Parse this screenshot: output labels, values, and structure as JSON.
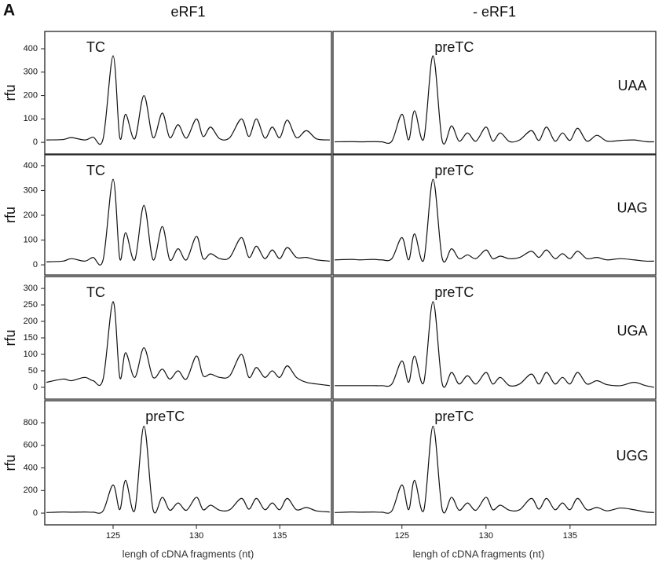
{
  "panel_label": "A",
  "chart_data": [
    {
      "type": "line",
      "title": "eRF1",
      "ylabel": "rfu",
      "annotation": "TC",
      "x": [
        121,
        122,
        122.5,
        123.3,
        123.8,
        124.4,
        125,
        125.4,
        125.75,
        126.3,
        126.85,
        127.4,
        127.95,
        128.4,
        128.9,
        129.4,
        130,
        130.4,
        130.85,
        131.4,
        132,
        132.7,
        133.15,
        133.6,
        134.1,
        134.55,
        135,
        135.45,
        136,
        136.6,
        137.2,
        138
      ],
      "values": [
        10,
        12,
        20,
        10,
        22,
        15,
        370,
        20,
        120,
        15,
        200,
        20,
        125,
        20,
        75,
        18,
        100,
        25,
        65,
        15,
        20,
        100,
        25,
        100,
        18,
        65,
        20,
        95,
        20,
        50,
        15,
        10
      ],
      "xlim": [
        120.9,
        138.1
      ],
      "ylim": [
        -50,
        474
      ],
      "yticks": [
        0,
        100,
        200,
        300,
        400
      ],
      "color": "#111111"
    },
    {
      "type": "line",
      "title": "- eRF1",
      "row_label": "UAA",
      "annotation": "preTC",
      "x": [
        121,
        122,
        122.5,
        123.3,
        123.8,
        124.4,
        125,
        125.4,
        125.75,
        126.3,
        126.85,
        127.4,
        127.95,
        128.4,
        128.9,
        129.4,
        130,
        130.4,
        130.85,
        131.4,
        132,
        132.7,
        133.15,
        133.6,
        134.1,
        134.55,
        135,
        135.45,
        136,
        136.6,
        137.2,
        138,
        138.8,
        139.5,
        140
      ],
      "values": [
        2,
        3,
        2,
        3,
        2,
        5,
        120,
        10,
        135,
        15,
        370,
        5,
        70,
        5,
        40,
        5,
        65,
        5,
        40,
        3,
        10,
        50,
        8,
        65,
        5,
        40,
        8,
        60,
        5,
        30,
        5,
        8,
        10,
        3,
        2
      ],
      "xlim": [
        120.9,
        140.1
      ],
      "ylim": [
        -50,
        474
      ],
      "color": "#111111"
    },
    {
      "type": "line",
      "ylabel": "rfu",
      "annotation": "TC",
      "x": [
        121,
        122,
        122.5,
        123.3,
        123.8,
        124.4,
        125,
        125.4,
        125.75,
        126.3,
        126.85,
        127.4,
        127.95,
        128.4,
        128.9,
        129.4,
        130,
        130.4,
        130.85,
        131.4,
        132,
        132.7,
        133.15,
        133.6,
        134.1,
        134.55,
        135,
        135.45,
        136,
        136.6,
        137.2,
        138
      ],
      "values": [
        12,
        15,
        25,
        15,
        30,
        20,
        345,
        25,
        130,
        20,
        240,
        20,
        155,
        20,
        65,
        20,
        115,
        25,
        45,
        25,
        30,
        110,
        30,
        75,
        25,
        60,
        25,
        70,
        30,
        30,
        20,
        15
      ],
      "xlim": [
        120.9,
        138.1
      ],
      "ylim": [
        -41,
        444
      ],
      "yticks": [
        0,
        100,
        200,
        300,
        400
      ],
      "color": "#111111"
    },
    {
      "type": "line",
      "row_label": "UAG",
      "annotation": "preTC",
      "x": [
        121,
        122,
        122.5,
        123.3,
        123.8,
        124.4,
        125,
        125.4,
        125.75,
        126.3,
        126.85,
        127.4,
        127.95,
        128.4,
        128.9,
        129.4,
        130,
        130.4,
        130.85,
        131.4,
        132,
        132.7,
        133.15,
        133.6,
        134.1,
        134.55,
        135,
        135.45,
        136,
        136.6,
        137.2,
        138,
        138.8,
        139.5,
        140
      ],
      "values": [
        20,
        22,
        20,
        22,
        20,
        25,
        110,
        20,
        125,
        20,
        345,
        25,
        65,
        25,
        40,
        25,
        60,
        25,
        35,
        25,
        30,
        55,
        30,
        60,
        25,
        45,
        25,
        55,
        25,
        30,
        20,
        25,
        20,
        15,
        15
      ],
      "xlim": [
        120.9,
        140.1
      ],
      "ylim": [
        -41,
        444
      ],
      "color": "#111111"
    },
    {
      "type": "line",
      "ylabel": "rfu",
      "annotation": "TC",
      "x": [
        121,
        122,
        122.5,
        123.3,
        123.8,
        124.4,
        125,
        125.4,
        125.75,
        126.3,
        126.85,
        127.4,
        127.95,
        128.4,
        128.9,
        129.4,
        130,
        130.4,
        130.85,
        131.4,
        132,
        132.7,
        133.15,
        133.6,
        134.1,
        134.55,
        135,
        135.45,
        136,
        136.6,
        137.2,
        138
      ],
      "values": [
        15,
        25,
        20,
        30,
        20,
        25,
        260,
        30,
        105,
        30,
        120,
        30,
        55,
        25,
        50,
        25,
        95,
        35,
        40,
        30,
        35,
        100,
        30,
        60,
        30,
        50,
        30,
        65,
        30,
        15,
        10,
        5
      ],
      "xlim": [
        120.9,
        138.1
      ],
      "ylim": [
        -36,
        336
      ],
      "yticks": [
        0,
        50,
        100,
        150,
        200,
        250,
        300
      ],
      "color": "#111111"
    },
    {
      "type": "line",
      "row_label": "UGA",
      "annotation": "preTC",
      "x": [
        121,
        122,
        122.5,
        123.3,
        123.8,
        124.4,
        125,
        125.4,
        125.75,
        126.3,
        126.85,
        127.4,
        127.95,
        128.4,
        128.9,
        129.4,
        130,
        130.4,
        130.85,
        131.4,
        132,
        132.7,
        133.15,
        133.6,
        134.1,
        134.55,
        135,
        135.45,
        136,
        136.6,
        137.2,
        138,
        138.8,
        139.5,
        140
      ],
      "values": [
        5,
        5,
        5,
        5,
        5,
        10,
        80,
        15,
        95,
        15,
        260,
        10,
        45,
        10,
        35,
        10,
        45,
        10,
        30,
        5,
        10,
        40,
        10,
        45,
        10,
        30,
        10,
        45,
        10,
        20,
        8,
        5,
        15,
        5,
        0
      ],
      "xlim": [
        120.9,
        140.1
      ],
      "ylim": [
        -36,
        336
      ],
      "color": "#111111"
    },
    {
      "type": "line",
      "ylabel": "rfu",
      "annotation": "preTC",
      "xlabel": "lengh of cDNA fragments (nt)",
      "x": [
        121,
        122,
        122.5,
        123.3,
        123.8,
        124.4,
        125,
        125.4,
        125.75,
        126.3,
        126.85,
        127.4,
        127.95,
        128.4,
        128.9,
        129.4,
        130,
        130.4,
        130.85,
        131.4,
        132,
        132.7,
        133.15,
        133.6,
        134.1,
        134.55,
        135,
        135.45,
        136,
        136.6,
        137.2,
        138
      ],
      "values": [
        5,
        10,
        8,
        10,
        8,
        20,
        250,
        30,
        290,
        25,
        770,
        30,
        140,
        25,
        90,
        25,
        140,
        30,
        70,
        25,
        30,
        130,
        35,
        130,
        30,
        90,
        30,
        130,
        30,
        50,
        20,
        10
      ],
      "xlim": [
        120.9,
        138.1
      ],
      "ylim": [
        -104,
        995
      ],
      "yticks": [
        0,
        200,
        400,
        600,
        800
      ],
      "xticks": [
        125,
        130,
        135
      ],
      "color": "#111111"
    },
    {
      "type": "line",
      "row_label": "UGG",
      "annotation": "preTC",
      "xlabel": "lengh of cDNA fragments (nt)",
      "x": [
        121,
        122,
        122.5,
        123.3,
        123.8,
        124.4,
        125,
        125.4,
        125.75,
        126.3,
        126.85,
        127.4,
        127.95,
        128.4,
        128.9,
        129.4,
        130,
        130.4,
        130.85,
        131.4,
        132,
        132.7,
        133.15,
        133.6,
        134.1,
        134.55,
        135,
        135.45,
        136,
        136.6,
        137.2,
        138,
        138.8,
        139.5,
        140
      ],
      "values": [
        5,
        10,
        8,
        10,
        8,
        20,
        250,
        30,
        290,
        25,
        770,
        30,
        140,
        25,
        90,
        25,
        140,
        30,
        70,
        25,
        30,
        130,
        35,
        130,
        30,
        90,
        30,
        130,
        30,
        50,
        20,
        45,
        30,
        10,
        5
      ],
      "xlim": [
        120.9,
        140.1
      ],
      "ylim": [
        -104,
        995
      ],
      "xticks": [
        125,
        130,
        135
      ],
      "color": "#111111"
    }
  ]
}
